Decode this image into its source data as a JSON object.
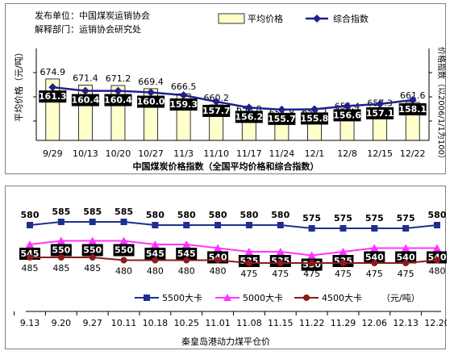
{
  "chart_data": [
    {
      "type": "bar+line",
      "title": "中国煤炭价格指数（全国平均价格和综合指数）",
      "publisher_label": "发布单位：中国煤炭运销协会",
      "interpreter_label": "解释部门：运销协会研究处",
      "ylabel_left": "平均价格（元/吨）",
      "ylabel_right": "价格指数（以2006/1/1为100）",
      "categories": [
        "9/29",
        "10/13",
        "10/20",
        "10/27",
        "11/3",
        "11/10",
        "11/17",
        "11/24",
        "12/1",
        "12/8",
        "12/15",
        "12/22"
      ],
      "series": [
        {
          "name": "平均价格",
          "kind": "bar",
          "color": "#ffffcc",
          "values": [
            674.9,
            671.4,
            671.2,
            669.4,
            666.5,
            660.2,
            653.8,
            651.8,
            652.2,
            655.4,
            657.3,
            661.6
          ],
          "labels": [
            "674.9",
            "671.4",
            "671.2",
            "669.4",
            "666.5",
            "660.2",
            "653.8",
            "651.8",
            "652.2",
            "655.4",
            "657.3",
            "661.6"
          ]
        },
        {
          "name": "综合指数",
          "kind": "line",
          "color": "#1f1f8f",
          "values": [
            161.3,
            160.4,
            160.4,
            160.0,
            159.3,
            157.7,
            156.2,
            155.7,
            155.8,
            156.6,
            157.1,
            158.1
          ],
          "labels": [
            "161.3",
            "160.4",
            "160.4",
            "160.0",
            "159.3",
            "157.7",
            "156.2",
            "155.7",
            "155.8",
            "156.6",
            "157.1",
            "158.1"
          ]
        }
      ],
      "legend_position": "top-right",
      "grid": false
    },
    {
      "type": "line",
      "title": "秦皇岛港动力煤平仓价",
      "unit_label": "（元/吨）",
      "categories": [
        "9.13",
        "9.20",
        "9.27",
        "10.11",
        "10.18",
        "10.25",
        "11.01",
        "11.08",
        "11.15",
        "11.22",
        "11.29",
        "12.06",
        "12.13",
        "12.20"
      ],
      "series": [
        {
          "name": "5500大卡",
          "color": "#1f2f8f",
          "marker": "square",
          "values": [
            580,
            585,
            585,
            585,
            580,
            580,
            580,
            580,
            580,
            575,
            575,
            575,
            575,
            580
          ]
        },
        {
          "name": "5000大卡",
          "color": "#ff33ff",
          "marker": "triangle",
          "values": [
            545,
            550,
            550,
            550,
            545,
            545,
            540,
            535,
            535,
            530,
            535,
            540,
            540,
            540
          ]
        },
        {
          "name": "4500大卡",
          "color": "#8b1a1a",
          "marker": "circle",
          "values": [
            485,
            485,
            485,
            480,
            480,
            480,
            480,
            475,
            475,
            475,
            475,
            475,
            475,
            480
          ]
        }
      ],
      "legend_position": "bottom",
      "grid": false
    }
  ]
}
